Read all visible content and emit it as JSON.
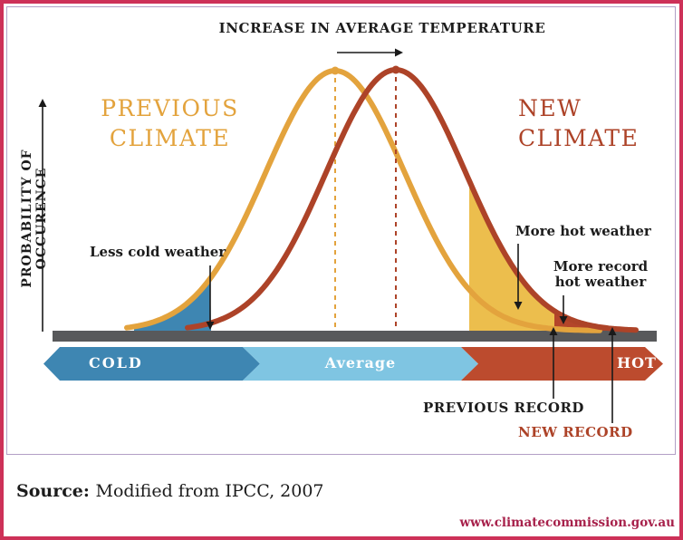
{
  "frame": {
    "outer_border_color": "#CD3158",
    "inner_border_color": "#B29FC6"
  },
  "header": {
    "title": "INCREASE IN AVERAGE TEMPERATURE"
  },
  "axis": {
    "y_label": "PROBABILITY OF OCCURENCE"
  },
  "curve_labels": {
    "previous": "PREVIOUS\nCLIMATE",
    "new": "NEW\nCLIMATE"
  },
  "annotations": {
    "less_cold": "Less cold weather",
    "more_hot": "More hot weather",
    "more_record": "More record\nhot weather",
    "previous_record": "PREVIOUS RECORD",
    "new_record": "NEW RECORD"
  },
  "axis_bar": {
    "segments": [
      {
        "label": "COLD",
        "color": "#3E86B2"
      },
      {
        "label": "Average",
        "color": "#7FC5E2"
      },
      {
        "label": "HOT",
        "color": "#BC4B2E"
      }
    ]
  },
  "footer": {
    "source_label": "Source:",
    "source_text": "Modified from IPCC, 2007",
    "website": "www.climatecommission.gov.au",
    "website_color": "#A7214B"
  },
  "chart_data": {
    "type": "area",
    "title": "INCREASE IN AVERAGE TEMPERATURE",
    "ylabel": "PROBABILITY OF OCCURENCE",
    "x_axis_categories": [
      "COLD",
      "Average",
      "HOT"
    ],
    "grid": false,
    "baseline_y": 365,
    "axis_color": "#58595B",
    "series": [
      {
        "name": "PREVIOUS CLIMATE",
        "distribution": "normal",
        "mean": 370,
        "sigma": 77,
        "peak_y": 78,
        "x_from": 140,
        "x_to": 662,
        "color": "#E3A33D"
      },
      {
        "name": "NEW CLIMATE",
        "distribution": "normal",
        "mean": 437,
        "sigma": 77,
        "peak_y": 77,
        "x_from": 207,
        "x_to": 703,
        "color": "#AD4328"
      }
    ],
    "shaded_regions": [
      {
        "name": "less-cold-weather",
        "label": "Less cold weather",
        "under_series": 0,
        "x_from": 148,
        "x_to": 233,
        "color": "#3E86B2"
      },
      {
        "name": "more-hot-weather",
        "label": "More hot weather",
        "under_series": 1,
        "x_from": 518,
        "x_to": 612,
        "color": "#ECBE4D"
      },
      {
        "name": "more-record-hot-weather",
        "label": "More record hot weather",
        "under_series": 1,
        "x_from": 612,
        "x_to": 700,
        "color": "#B4452A"
      }
    ],
    "record_markers": [
      {
        "label": "PREVIOUS RECORD",
        "x": 611
      },
      {
        "label": "NEW RECORD",
        "x": 676
      }
    ]
  }
}
